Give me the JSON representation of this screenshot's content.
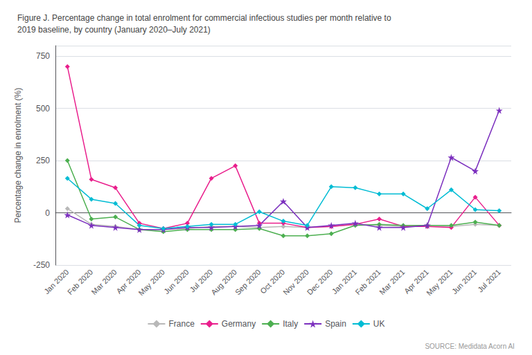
{
  "chart_data": {
    "type": "line",
    "title": "Figure J. Percentage change in total enrolment for commercial infectious studies per month relative to\n2019 baseline, by country (January 2020–July 2021)",
    "y_label": "Percentage change in enrolment (%)",
    "annotations": [
      "SOURCE: Medidata Acorn AI"
    ],
    "categories": [
      "Jan 2020",
      "Feb 2020",
      "Mar 2020",
      "Apr 2020",
      "May 2020",
      "Jun 2020",
      "Jul 2020",
      "Aug 2020",
      "Sep 2020",
      "Oct 2020",
      "Nov 2020",
      "Dec 2020",
      "Jan 2021",
      "Feb 2021",
      "Mar 2021",
      "Apr 2021",
      "May 2021",
      "Jun 2021",
      "Jul 2021"
    ],
    "series": [
      {
        "name": "France",
        "color": "#b8b8b8",
        "marker": "diamond",
        "values": [
          20,
          -55,
          -65,
          -80,
          -80,
          -75,
          -65,
          -65,
          -70,
          -65,
          -70,
          -65,
          -55,
          -60,
          -65,
          -65,
          -65,
          -55,
          -60
        ]
      },
      {
        "name": "Germany",
        "color": "#e91e8c",
        "marker": "diamond",
        "values": [
          700,
          160,
          120,
          -50,
          -75,
          -50,
          165,
          225,
          -50,
          -50,
          -70,
          -65,
          -55,
          -30,
          -65,
          -65,
          -70,
          75,
          -60
        ]
      },
      {
        "name": "Italy",
        "color": "#4caf50",
        "marker": "diamond",
        "values": [
          250,
          -30,
          -20,
          -80,
          -90,
          -80,
          -80,
          -80,
          -75,
          -110,
          -110,
          -100,
          -60,
          -55,
          -60,
          -60,
          -60,
          -45,
          -60
        ]
      },
      {
        "name": "Spain",
        "color": "#7b2fbe",
        "marker": "star",
        "values": [
          -10,
          -60,
          -70,
          -80,
          -80,
          -70,
          -70,
          -65,
          -60,
          55,
          -70,
          -60,
          -50,
          -70,
          -70,
          -60,
          265,
          200,
          490
        ]
      },
      {
        "name": "UK",
        "color": "#00bcd4",
        "marker": "diamond",
        "values": [
          165,
          65,
          45,
          -60,
          -75,
          -65,
          -55,
          -55,
          5,
          -40,
          -60,
          125,
          120,
          90,
          90,
          20,
          110,
          15,
          10
        ]
      }
    ],
    "ylim": [
      -250,
      800
    ],
    "yticks": [
      -250,
      0,
      250,
      500,
      750
    ],
    "grid": true,
    "legend": "bottom"
  }
}
